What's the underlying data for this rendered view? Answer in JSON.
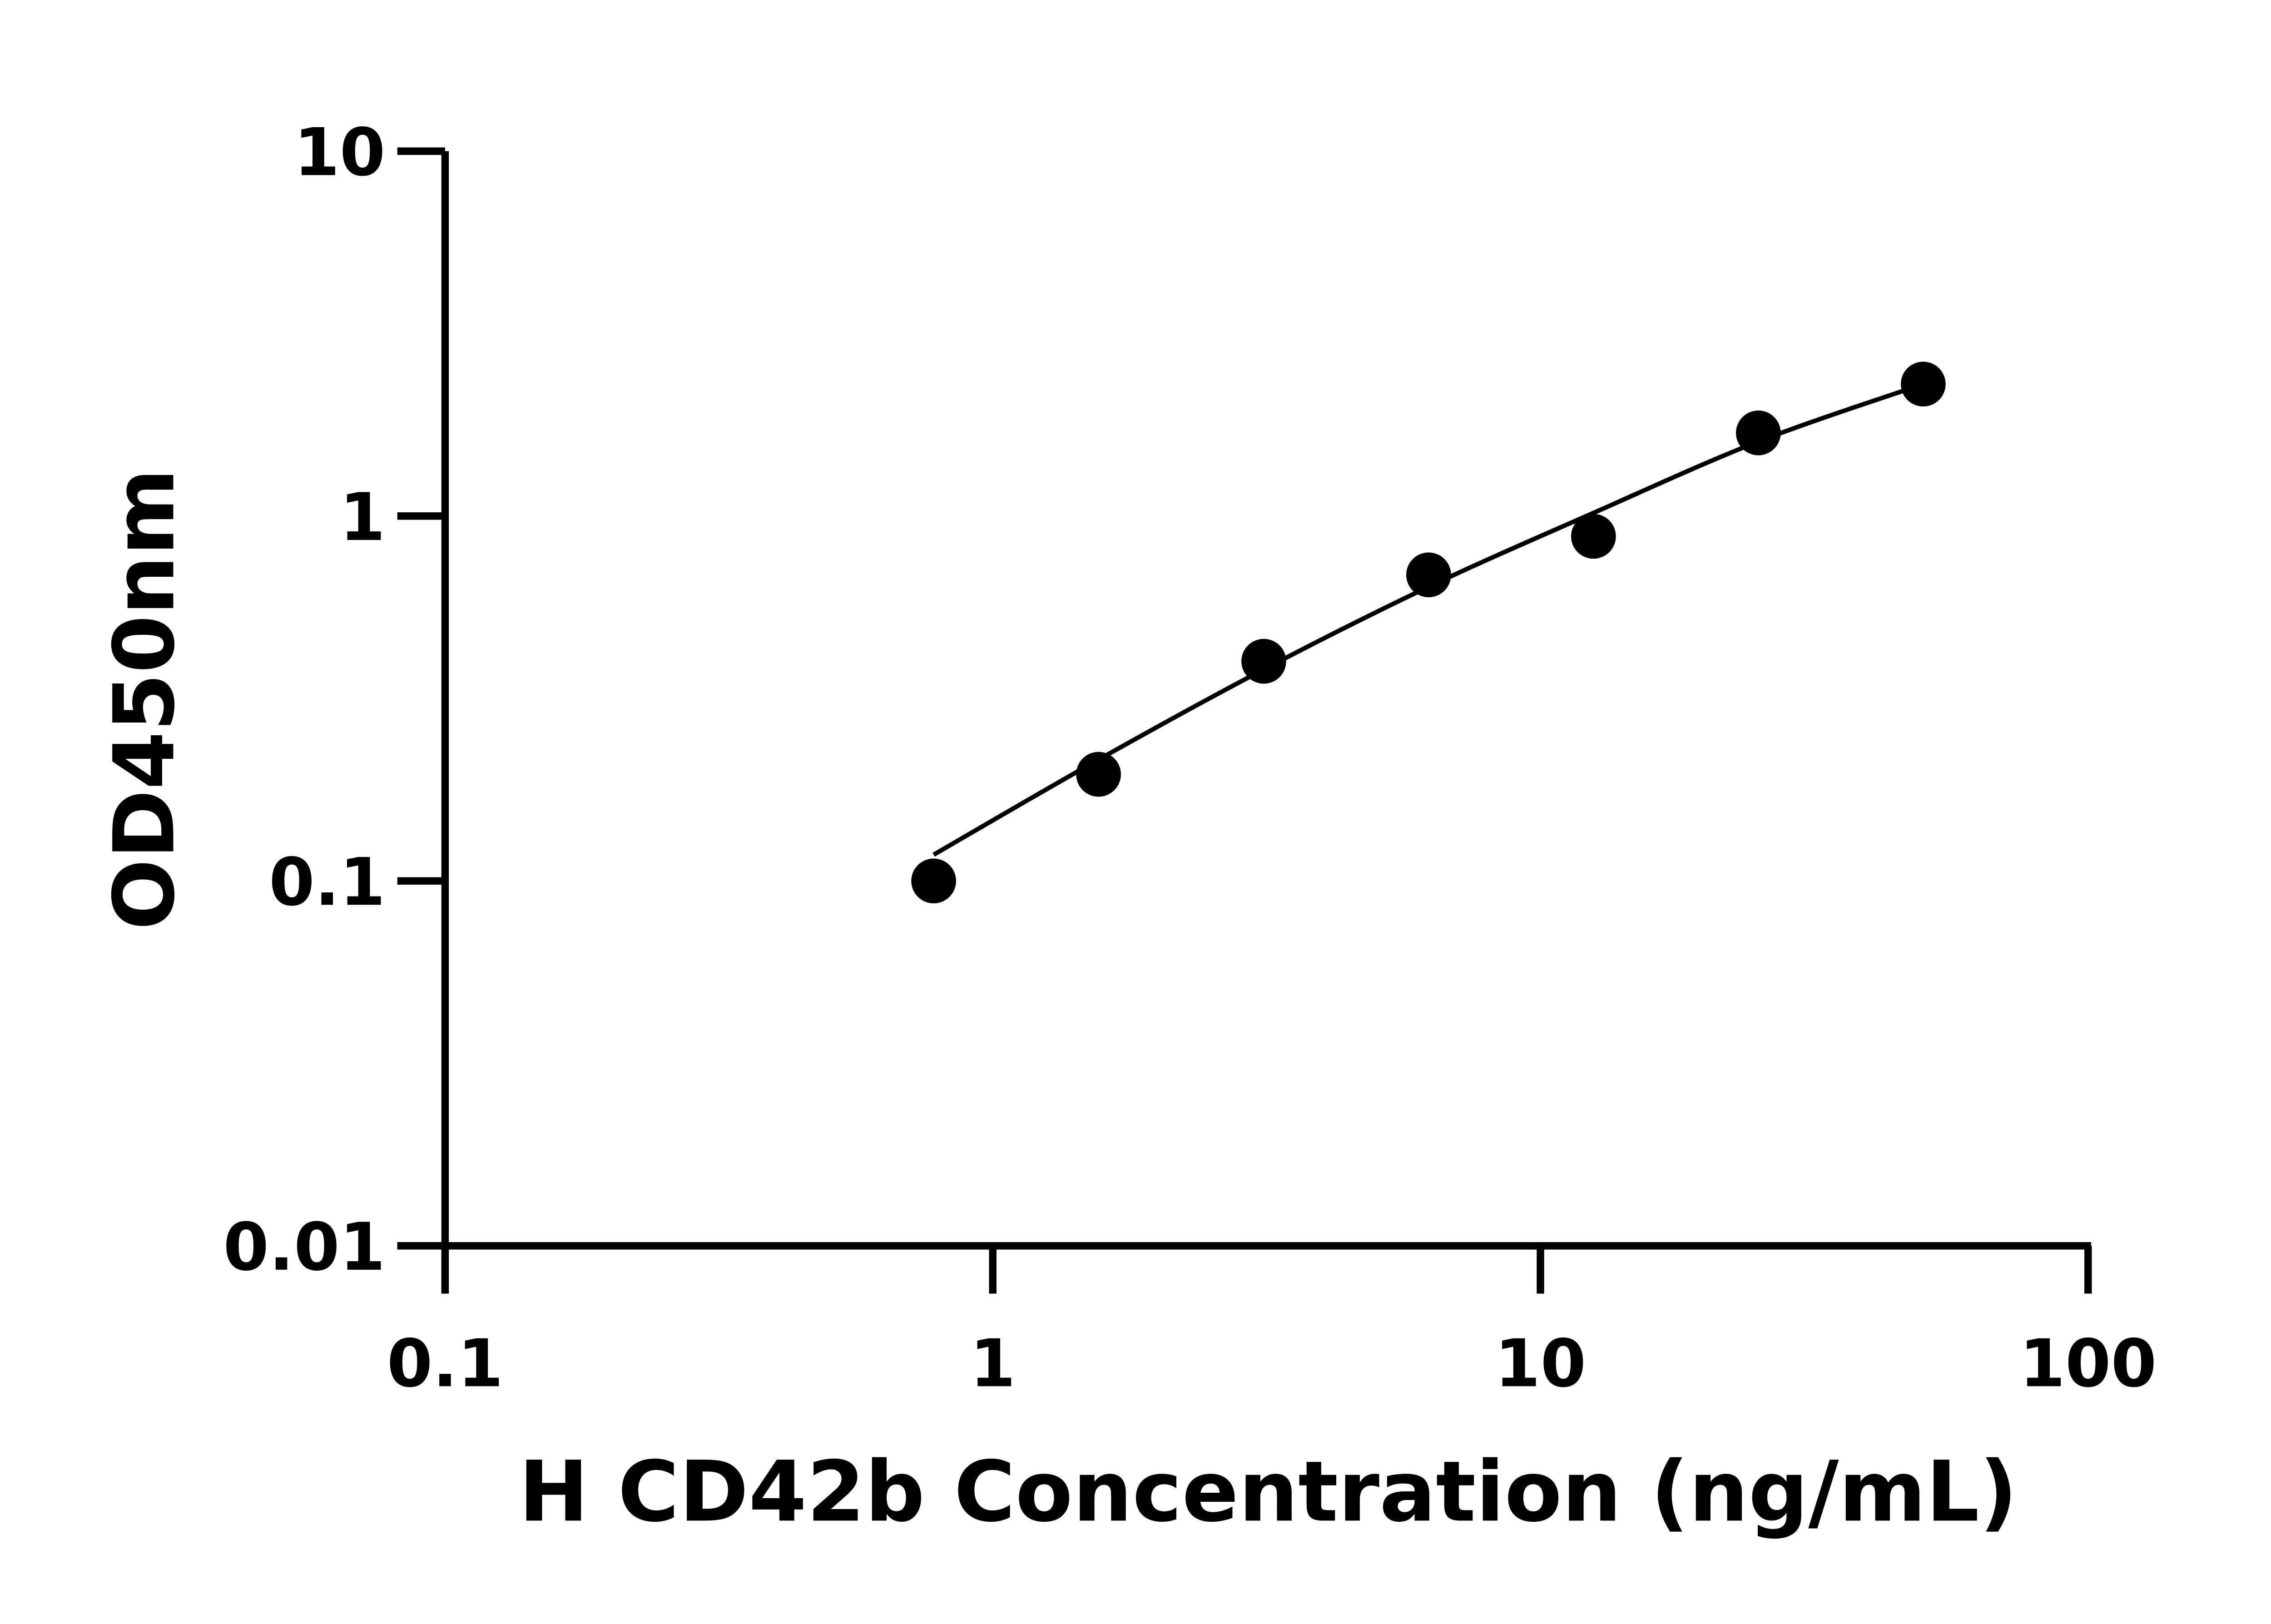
{
  "chart_data": {
    "type": "scatter",
    "title": "",
    "xlabel": "H CD42b Concentration (ng/mL)",
    "ylabel": "OD450nm",
    "xscale": "log",
    "yscale": "log",
    "xlim": [
      0.1,
      100
    ],
    "ylim": [
      0.01,
      10
    ],
    "xticks": [
      "0.1",
      "1",
      "10",
      "100"
    ],
    "yticks": [
      "0.01",
      "0.1",
      "1",
      "10"
    ],
    "grid": false,
    "legend": "none",
    "color": "#000000",
    "points": {
      "x": [
        0.78,
        1.56,
        3.125,
        6.25,
        12.5,
        25,
        50
      ],
      "y": [
        0.1,
        0.196,
        0.4,
        0.69,
        0.88,
        1.69,
        2.3
      ]
    },
    "fit_curve": {
      "x": [
        0.78,
        1.56,
        3.125,
        6.25,
        12.5,
        25,
        50
      ],
      "y": [
        0.118,
        0.215,
        0.38,
        0.64,
        1.02,
        1.6,
        2.3
      ]
    }
  }
}
